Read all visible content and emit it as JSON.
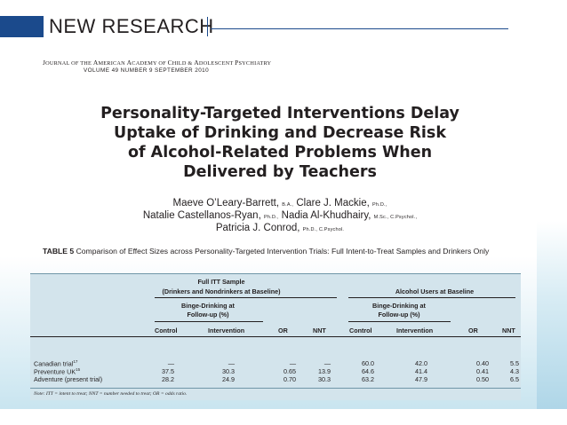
{
  "header": {
    "title": "NEW RESEARCH"
  },
  "journal": {
    "name_prefix": "J",
    "name_rest": "OURNAL OF THE ",
    "name_a": "A",
    "name_a_rest": "MERICAN ",
    "name_b": "A",
    "name_b_rest": "CADEMY OF ",
    "name_c": "C",
    "name_c_rest": "HILD & ",
    "name_d": "A",
    "name_d_rest": "DOLESCENT ",
    "name_e": "P",
    "name_e_rest": "SYCHIATRY",
    "volume_line": "VOLUME 49   NUMBER 9   SEPTEMBER 2010"
  },
  "paper": {
    "title_line1": "Personality-Targeted Interventions Delay",
    "title_line2": "Uptake of Drinking and Decrease Risk",
    "title_line3": "of Alcohol-Related Problems When",
    "title_line4": "Delivered by Teachers",
    "author1": "Maeve O’Leary-Barrett,",
    "author1_deg": "B.A.,",
    "author2": "Clare J. Mackie,",
    "author2_deg": "Ph.D.,",
    "author3": "Natalie Castellanos-Ryan,",
    "author3_deg": "Ph.D.,",
    "author4": "Nadia Al-Khudhairy,",
    "author4_deg": "M.Sc., C.Psychol.,",
    "author5": "Patricia J. Conrod,",
    "author5_deg": "Ph.D., C.Psychol."
  },
  "table": {
    "label": "TABLE 5",
    "caption": "Comparison of Effect Sizes across Personality-Targeted Intervention Trials: Full Intent-to-Treat Samples and Drinkers Only",
    "group1_line1": "Full ITT Sample",
    "group1_line2": "(Drinkers and Nondrinkers at Baseline)",
    "group2": "Alcohol Users at Baseline",
    "sub1_line1": "Binge-Drinking at",
    "sub1_line2": "Follow-up (%)",
    "sub2_line1": "Binge-Drinking at",
    "sub2_line2": "Follow-up (%)",
    "columns": [
      "Control",
      "Intervention",
      "OR",
      "NNT",
      "Control",
      "Intervention",
      "OR",
      "NNT"
    ],
    "rows": [
      {
        "label": "Canadian trial",
        "sup": "17",
        "values": [
          "—",
          "—",
          "—",
          "—",
          "60.0",
          "42.0",
          "0.40",
          "5.5"
        ]
      },
      {
        "label": "Preventure UK",
        "sup": "15",
        "values": [
          "37.5",
          "30.3",
          "0.65",
          "13.9",
          "64.6",
          "41.4",
          "0.41",
          "4.3"
        ]
      },
      {
        "label": "Adventure (present trial)",
        "sup": "",
        "values": [
          "28.2",
          "24.9",
          "0.70",
          "30.3",
          "63.2",
          "47.9",
          "0.50",
          "6.5"
        ]
      }
    ],
    "note": "Note: ITT = intent to treat; NNT = number needed to treat; OR = odds ratio."
  },
  "colors": {
    "brand_blue": "#1b4a8c",
    "table_bg": "#d3e4ec"
  }
}
